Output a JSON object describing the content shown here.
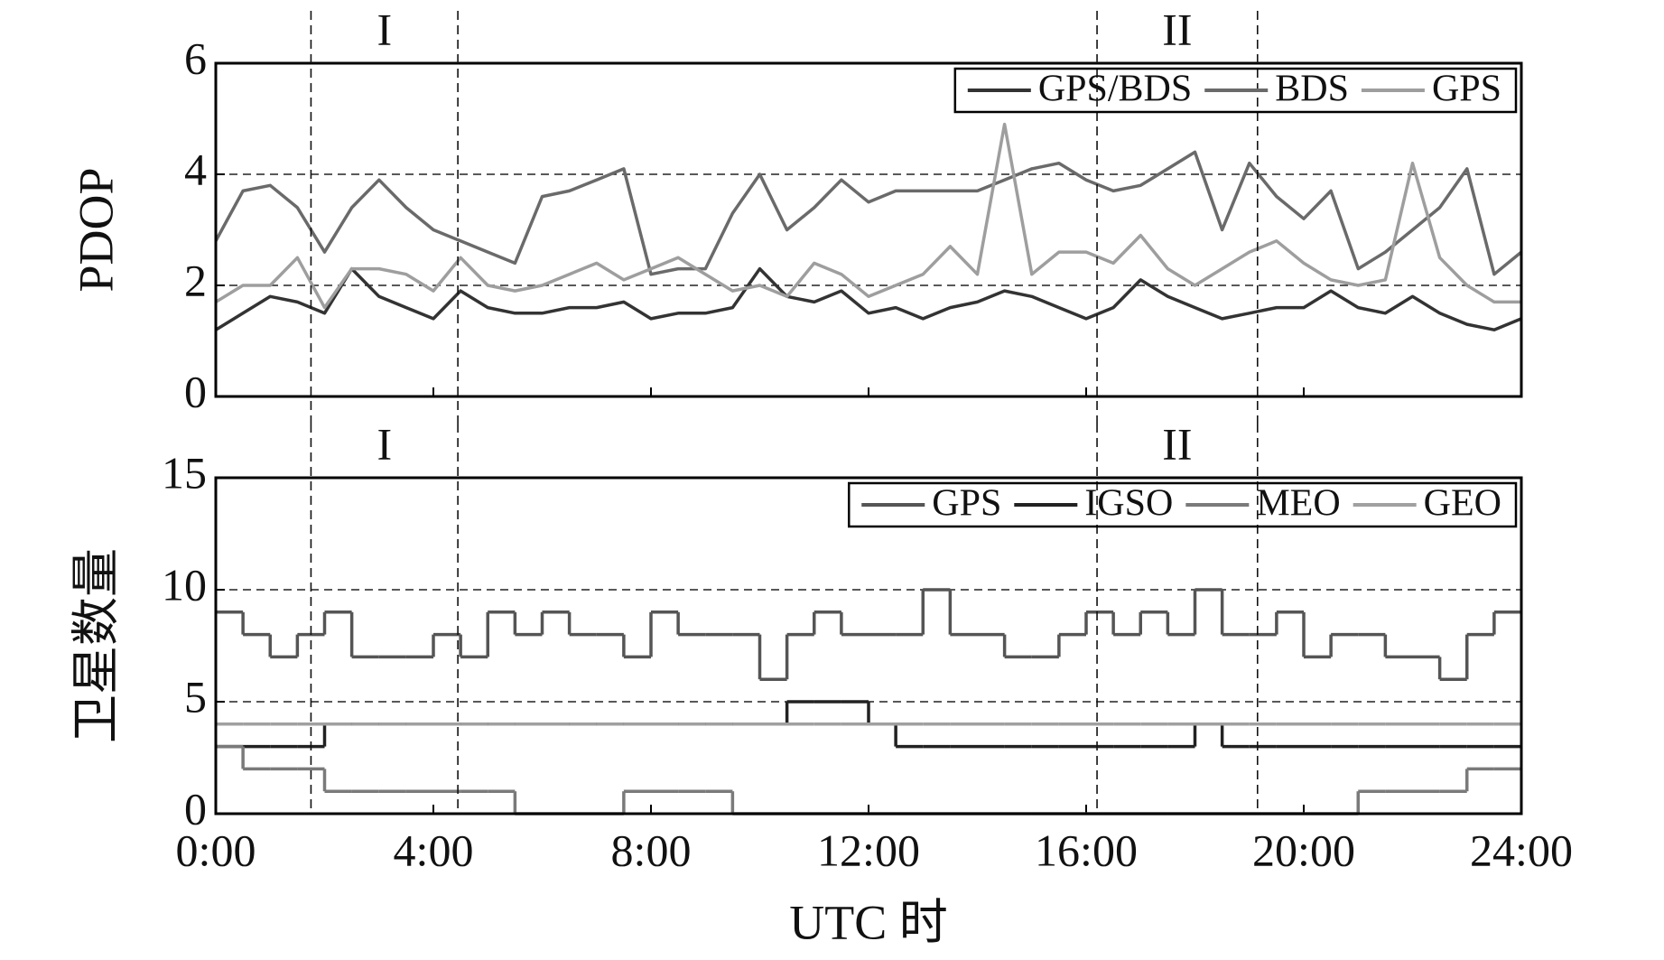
{
  "chart_data": [
    {
      "type": "line",
      "y_label": "PDOP",
      "x": [
        0,
        0.5,
        1,
        1.5,
        2,
        2.5,
        3,
        3.5,
        4,
        4.5,
        5,
        5.5,
        6,
        6.5,
        7,
        7.5,
        8,
        8.5,
        9,
        9.5,
        10,
        10.5,
        11,
        11.5,
        12,
        12.5,
        13,
        13.5,
        14,
        14.5,
        15,
        15.5,
        16,
        16.5,
        17,
        17.5,
        18,
        18.5,
        19,
        19.5,
        20,
        20.5,
        21,
        21.5,
        22,
        22.5,
        23,
        23.5,
        24
      ],
      "xlim": [
        0,
        24
      ],
      "xticks": [
        0,
        4,
        8,
        12,
        16,
        20,
        24
      ],
      "ylim": [
        0,
        6
      ],
      "yticks": [
        0,
        2,
        4,
        6
      ],
      "grid": true,
      "legend": "top-right",
      "regions": [
        {
          "label": "I",
          "start": 1.75,
          "end": 4.45
        },
        {
          "label": "II",
          "start": 16.2,
          "end": 19.15
        }
      ],
      "series": [
        {
          "name": "GPS/BDS",
          "color": "#333333",
          "values": [
            1.2,
            1.5,
            1.8,
            1.7,
            1.5,
            2.3,
            1.8,
            1.6,
            1.4,
            1.9,
            1.6,
            1.5,
            1.5,
            1.6,
            1.6,
            1.7,
            1.4,
            1.5,
            1.5,
            1.6,
            2.3,
            1.8,
            1.7,
            1.9,
            1.5,
            1.6,
            1.4,
            1.6,
            1.7,
            1.9,
            1.8,
            1.6,
            1.4,
            1.6,
            2.1,
            1.8,
            1.6,
            1.4,
            1.5,
            1.6,
            1.6,
            1.9,
            1.6,
            1.5,
            1.8,
            1.5,
            1.3,
            1.2,
            1.4
          ]
        },
        {
          "name": "BDS",
          "color": "#6a6a6a",
          "values": [
            2.8,
            3.7,
            3.8,
            3.4,
            2.6,
            3.4,
            3.9,
            3.4,
            3.0,
            2.8,
            2.6,
            2.4,
            3.6,
            3.7,
            3.9,
            4.1,
            2.2,
            2.3,
            2.3,
            3.3,
            4.0,
            3.0,
            3.4,
            3.9,
            3.5,
            3.7,
            3.7,
            3.7,
            3.7,
            3.9,
            4.1,
            4.2,
            3.9,
            3.7,
            3.8,
            4.1,
            4.4,
            3.0,
            4.2,
            3.6,
            3.2,
            3.7,
            2.3,
            2.6,
            3.0,
            3.4,
            4.1,
            2.2,
            2.6
          ]
        },
        {
          "name": "GPS",
          "color": "#9e9e9e",
          "values": [
            1.7,
            2.0,
            2.0,
            2.5,
            1.6,
            2.3,
            2.3,
            2.2,
            1.9,
            2.5,
            2.0,
            1.9,
            2.0,
            2.2,
            2.4,
            2.1,
            2.3,
            2.5,
            2.2,
            1.9,
            2.0,
            1.8,
            2.4,
            2.2,
            1.8,
            2.0,
            2.2,
            2.7,
            2.2,
            4.9,
            2.2,
            2.6,
            2.6,
            2.4,
            2.9,
            2.3,
            2.0,
            2.3,
            2.6,
            2.8,
            2.4,
            2.1,
            2.0,
            2.1,
            4.2,
            2.5,
            2.0,
            1.7,
            1.7
          ]
        }
      ]
    },
    {
      "type": "line",
      "step": true,
      "y_label": "卫星数量",
      "x_label": "UTC 时",
      "x": [
        0,
        0.5,
        1,
        1.5,
        2,
        2.5,
        3,
        3.5,
        4,
        4.5,
        5,
        5.5,
        6,
        6.5,
        7,
        7.5,
        8,
        8.5,
        9,
        9.5,
        10,
        10.5,
        11,
        11.5,
        12,
        12.5,
        13,
        13.5,
        14,
        14.5,
        15,
        15.5,
        16,
        16.5,
        17,
        17.5,
        18,
        18.5,
        19,
        19.5,
        20,
        20.5,
        21,
        21.5,
        22,
        22.5,
        23,
        23.5,
        24
      ],
      "xlim": [
        0,
        24
      ],
      "xticks": [
        {
          "value": 0,
          "label": "0:00"
        },
        {
          "value": 4,
          "label": "4:00"
        },
        {
          "value": 8,
          "label": "8:00"
        },
        {
          "value": 12,
          "label": "12:00"
        },
        {
          "value": 16,
          "label": "16:00"
        },
        {
          "value": 20,
          "label": "20:00"
        },
        {
          "value": 24,
          "label": "24:00"
        }
      ],
      "ylim": [
        0,
        15
      ],
      "yticks": [
        0,
        5,
        10,
        15
      ],
      "grid": true,
      "legend": "top-right",
      "regions": [
        {
          "label": "I",
          "start": 1.75,
          "end": 4.45
        },
        {
          "label": "II",
          "start": 16.2,
          "end": 19.15
        }
      ],
      "series": [
        {
          "name": "GPS",
          "color": "#555555",
          "values": [
            9,
            8,
            7,
            8,
            9,
            7,
            7,
            7,
            8,
            7,
            9,
            8,
            9,
            8,
            8,
            7,
            9,
            8,
            8,
            8,
            6,
            8,
            9,
            8,
            8,
            8,
            10,
            8,
            8,
            7,
            7,
            8,
            9,
            8,
            9,
            8,
            10,
            8,
            8,
            9,
            7,
            8,
            8,
            7,
            7,
            6,
            8,
            9,
            9
          ]
        },
        {
          "name": "IGSO",
          "color": "#222222",
          "values": [
            3,
            3,
            3,
            3,
            4,
            4,
            4,
            4,
            4,
            4,
            4,
            4,
            4,
            4,
            4,
            4,
            4,
            4,
            4,
            4,
            4,
            5,
            5,
            5,
            4,
            3,
            3,
            3,
            3,
            3,
            3,
            3,
            3,
            3,
            3,
            3,
            4,
            3,
            3,
            3,
            3,
            3,
            3,
            3,
            3,
            3,
            3,
            3,
            3
          ]
        },
        {
          "name": "MEO",
          "color": "#7a7a7a",
          "values": [
            3,
            2,
            2,
            2,
            1,
            1,
            1,
            1,
            1,
            1,
            1,
            0,
            0,
            0,
            0,
            1,
            1,
            1,
            1,
            0,
            0,
            0,
            0,
            0,
            0,
            0,
            0,
            0,
            0,
            0,
            0,
            0,
            0,
            0,
            0,
            0,
            0,
            0,
            0,
            0,
            0,
            0,
            1,
            1,
            1,
            1,
            2,
            2,
            2
          ]
        },
        {
          "name": "GEO",
          "color": "#a0a0a0",
          "values": [
            4,
            4,
            4,
            4,
            4,
            4,
            4,
            4,
            4,
            4,
            4,
            4,
            4,
            4,
            4,
            4,
            4,
            4,
            4,
            4,
            4,
            4,
            4,
            4,
            4,
            4,
            4,
            4,
            4,
            4,
            4,
            4,
            4,
            4,
            4,
            4,
            4,
            4,
            4,
            4,
            4,
            4,
            4,
            4,
            4,
            4,
            4,
            4,
            4
          ]
        }
      ]
    }
  ]
}
